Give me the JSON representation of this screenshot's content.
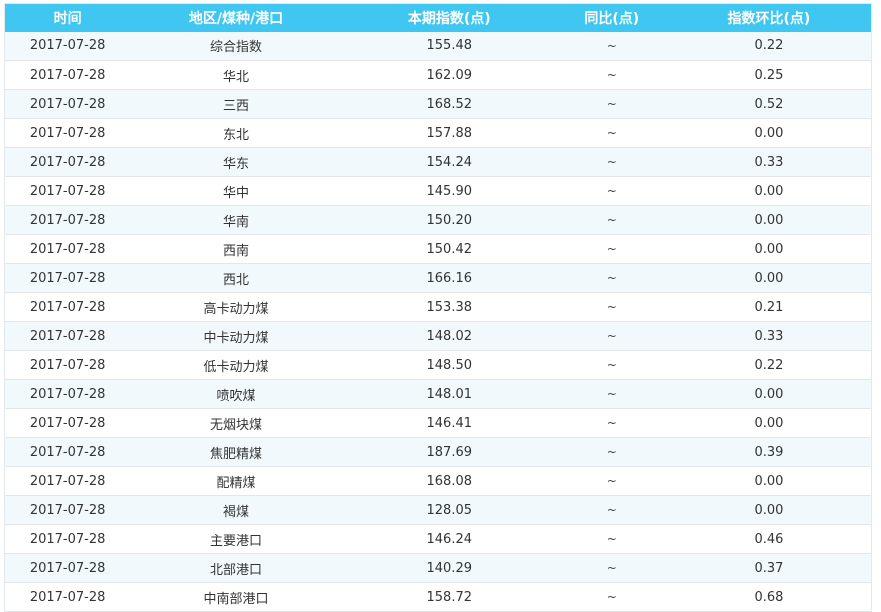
{
  "colors": {
    "header_bg": "#3fc7f2",
    "header_text": "#ffffff",
    "row_alt_bg": "#f1f9fd",
    "row_bg": "#ffffff",
    "row_border": "#e4e7e9",
    "cell_text": "#333333"
  },
  "chart_data": {
    "type": "table",
    "columns": [
      "时间",
      "地区/煤种/港口",
      "本期指数(点)",
      "同比(点)",
      "指数环比(点)"
    ],
    "rows": [
      [
        "2017-07-28",
        "综合指数",
        "155.48",
        "~",
        "0.22"
      ],
      [
        "2017-07-28",
        "华北",
        "162.09",
        "~",
        "0.25"
      ],
      [
        "2017-07-28",
        "三西",
        "168.52",
        "~",
        "0.52"
      ],
      [
        "2017-07-28",
        "东北",
        "157.88",
        "~",
        "0.00"
      ],
      [
        "2017-07-28",
        "华东",
        "154.24",
        "~",
        "0.33"
      ],
      [
        "2017-07-28",
        "华中",
        "145.90",
        "~",
        "0.00"
      ],
      [
        "2017-07-28",
        "华南",
        "150.20",
        "~",
        "0.00"
      ],
      [
        "2017-07-28",
        "西南",
        "150.42",
        "~",
        "0.00"
      ],
      [
        "2017-07-28",
        "西北",
        "166.16",
        "~",
        "0.00"
      ],
      [
        "2017-07-28",
        "高卡动力煤",
        "153.38",
        "~",
        "0.21"
      ],
      [
        "2017-07-28",
        "中卡动力煤",
        "148.02",
        "~",
        "0.33"
      ],
      [
        "2017-07-28",
        "低卡动力煤",
        "148.50",
        "~",
        "0.22"
      ],
      [
        "2017-07-28",
        "喷吹煤",
        "148.01",
        "~",
        "0.00"
      ],
      [
        "2017-07-28",
        "无烟块煤",
        "146.41",
        "~",
        "0.00"
      ],
      [
        "2017-07-28",
        "焦肥精煤",
        "187.69",
        "~",
        "0.39"
      ],
      [
        "2017-07-28",
        "配精煤",
        "168.08",
        "~",
        "0.00"
      ],
      [
        "2017-07-28",
        "褐煤",
        "128.05",
        "~",
        "0.00"
      ],
      [
        "2017-07-28",
        "主要港口",
        "146.24",
        "~",
        "0.46"
      ],
      [
        "2017-07-28",
        "北部港口",
        "140.29",
        "~",
        "0.37"
      ],
      [
        "2017-07-28",
        "中南部港口",
        "158.72",
        "~",
        "0.68"
      ]
    ]
  }
}
